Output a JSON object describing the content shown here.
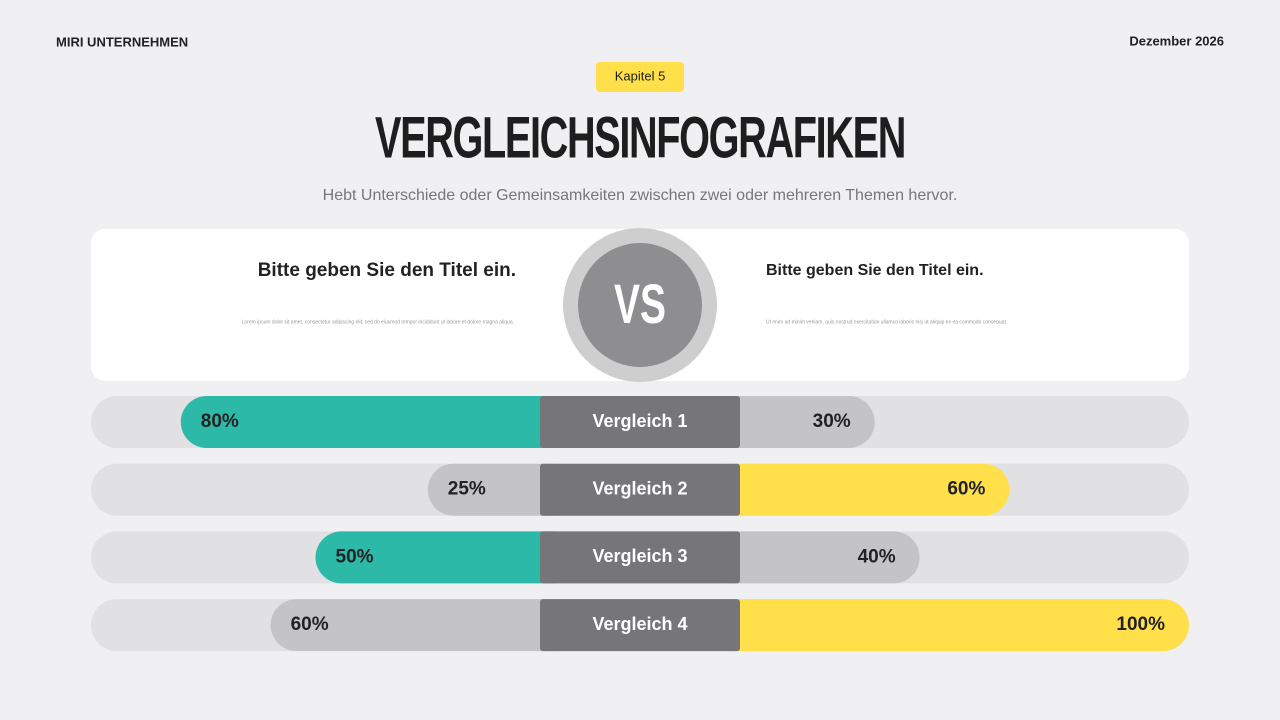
{
  "header": {
    "company": "MIRI UNTERNEHMEN",
    "date": "Dezember 2026",
    "badge": "Kapitel 5",
    "title": "VERGLEICHSINFOGRAFIKEN",
    "subtitle": "Hebt Unterschiede oder Gemeinsamkeiten zwischen zwei oder mehreren Themen hervor."
  },
  "cards": {
    "left_title": "Bitte geben Sie den Titel ein.",
    "left_body": "Lorem ipsum dolor sit amet, consectetur adipiscing elit, sed do eiusmod tempor incididunt ut labore et dolore magna aliqua.",
    "vs": "VS",
    "right_title": "Bitte geben Sie den Titel ein.",
    "right_body": "Ut enim ad minim veniam, quis nostrud exercitation ullamco laboris nisi ut aliquip ex ea commodo consequat."
  },
  "chart_data": {
    "type": "butterfly",
    "categories": [
      "Vergleich 1",
      "Vergleich 2",
      "Vergleich 3",
      "Vergleich 4"
    ],
    "xlim": [
      0,
      100
    ],
    "series": [
      {
        "side": "left",
        "values": [
          80,
          25,
          50,
          60
        ],
        "value_labels": [
          "80%",
          "25%",
          "50%",
          "60%"
        ],
        "colors": [
          "#2cb9a8",
          "#c4c3c5",
          "#2cb9a8",
          "#c4c3c5"
        ]
      },
      {
        "side": "right",
        "values": [
          30,
          60,
          40,
          100
        ],
        "value_labels": [
          "30%",
          "60%",
          "40%",
          "100%"
        ],
        "colors": [
          "#c4c3c5",
          "#ffe04b",
          "#c4c3c5",
          "#ffe04b"
        ]
      }
    ]
  }
}
